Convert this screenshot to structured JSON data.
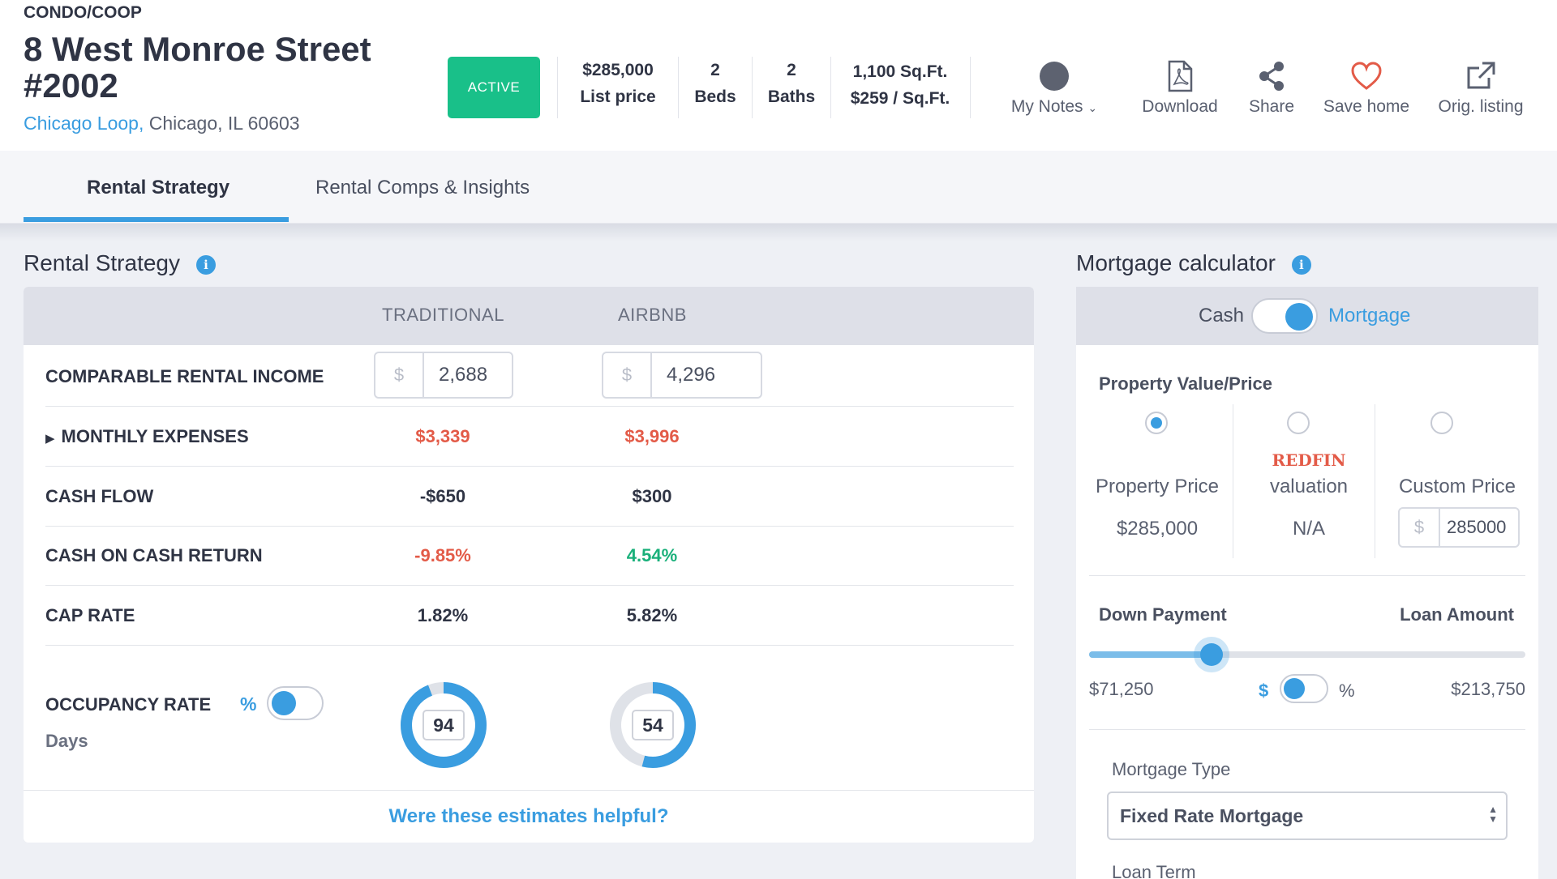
{
  "listing": {
    "property_type": "CONDO/COOP",
    "address": "8 West Monroe Street #2002",
    "neighborhood": "Chicago Loop,",
    "city_state_zip": "Chicago, IL 60603",
    "status": "ACTIVE",
    "price": "$285,000",
    "price_label": "List price",
    "beds": "2",
    "beds_label": "Beds",
    "baths": "2",
    "baths_label": "Baths",
    "sqft": "1,100 Sq.Ft.",
    "price_per_sqft": "$259 / Sq.Ft."
  },
  "actions": {
    "notes": "My Notes",
    "download": "Download",
    "share": "Share",
    "save": "Save home",
    "orig": "Orig. listing"
  },
  "tabs": [
    {
      "label": "Rental Strategy",
      "active": true
    },
    {
      "label": "Rental Comps & Insights",
      "active": false
    }
  ],
  "rental": {
    "title": "Rental Strategy",
    "col_traditional": "TRADITIONAL",
    "col_airbnb": "AIRBNB",
    "income_label": "COMPARABLE RENTAL INCOME",
    "currency": "$",
    "income_traditional": "2,688",
    "income_airbnb": "4,296",
    "expenses_label": "MONTHLY EXPENSES",
    "expenses_traditional": "$3,339",
    "expenses_airbnb": "$3,996",
    "cashflow_label": "CASH FLOW",
    "cashflow_traditional": "-$650",
    "cashflow_airbnb": "$300",
    "coc_label": "CASH ON CASH RETURN",
    "coc_traditional": "-9.85%",
    "coc_airbnb": "4.54%",
    "cap_label": "CAP RATE",
    "cap_traditional": "1.82%",
    "cap_airbnb": "5.82%",
    "occupancy_label": "OCCUPANCY RATE",
    "occupancy_pct_symbol": "%",
    "occupancy_days_label": "Days",
    "occupancy_traditional": "94",
    "occupancy_airbnb": "54",
    "helpful": "Were these estimates helpful?"
  },
  "mortgage": {
    "title": "Mortgage calculator",
    "cash_label": "Cash",
    "mortgage_label": "Mortgage",
    "value_label": "Property Value/Price",
    "opt_property": "Property Price",
    "opt_property_value": "$285,000",
    "opt_redfin_brand": "REDFIN",
    "opt_redfin": "valuation",
    "opt_redfin_value": "N/A",
    "opt_custom": "Custom Price",
    "custom_currency": "$",
    "custom_value": "285000",
    "down_label": "Down Payment",
    "loan_label": "Loan Amount",
    "down_value": "$71,250",
    "loan_value": "$213,750",
    "dollar": "$",
    "percent": "%",
    "down_fraction": 0.25,
    "type_label": "Mortgage Type",
    "type_value": "Fixed Rate Mortgage",
    "term_label": "Loan Term"
  },
  "colors": {
    "accent": "#3a9de0",
    "active_badge": "#19c089",
    "negative": "#e35b48",
    "positive": "#19b07a"
  }
}
